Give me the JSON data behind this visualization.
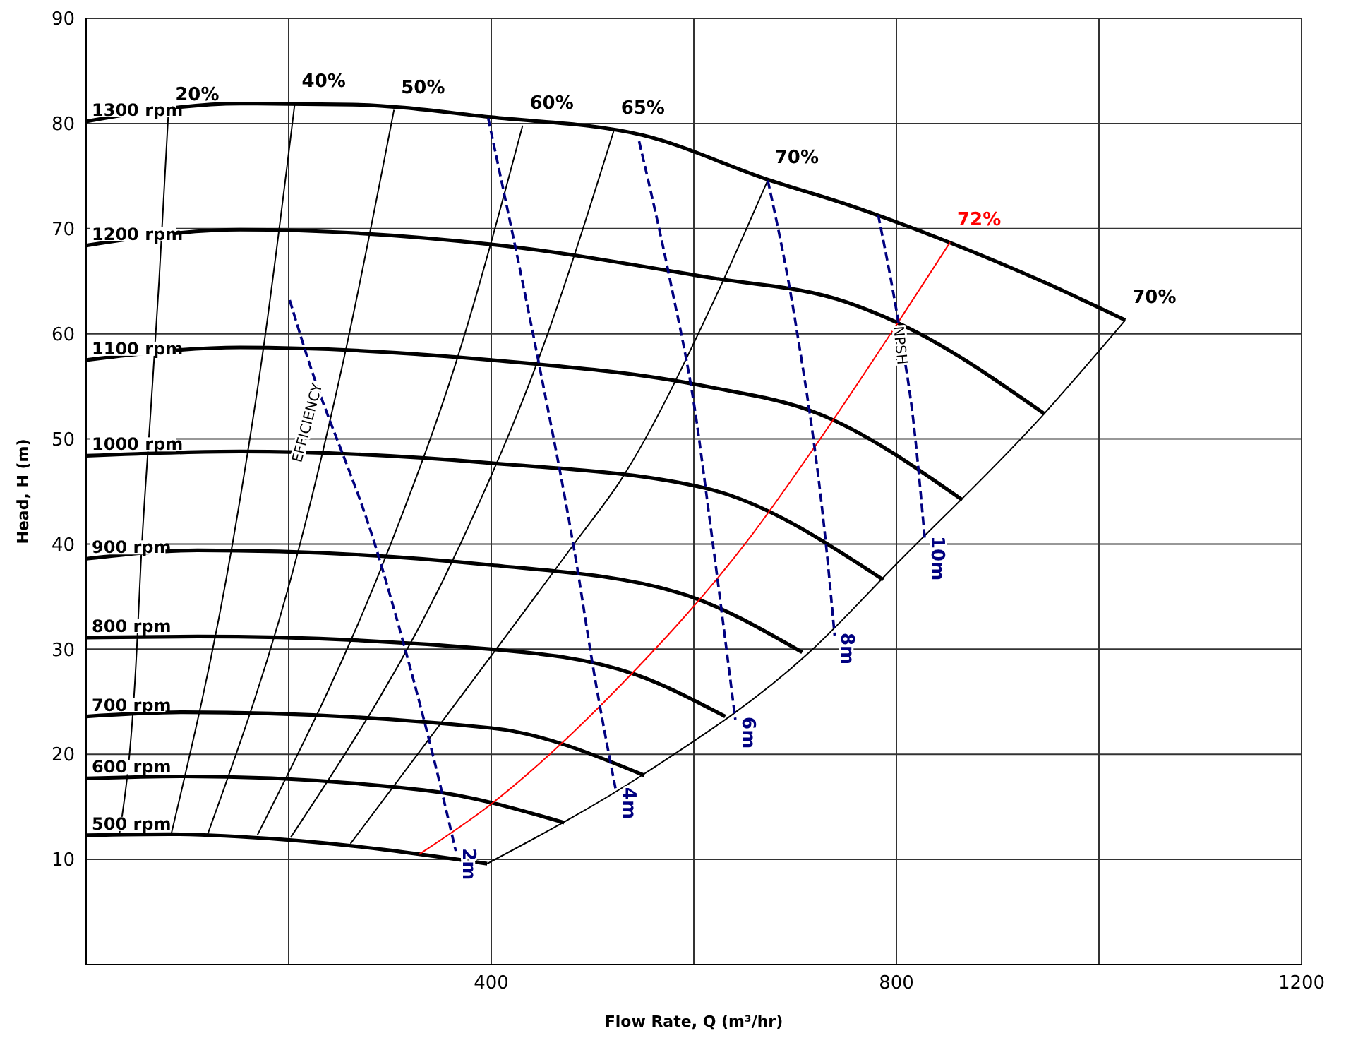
{
  "chart_data": {
    "type": "line",
    "xlabel": "Flow Rate, Q (m³/hr)",
    "ylabel": "Head, H (m)",
    "xlim": [
      0,
      1200
    ],
    "ylim": [
      0,
      90
    ],
    "xticks": [
      {
        "value": 0,
        "label": null
      },
      {
        "value": 200,
        "label": null
      },
      400,
      {
        "value": 600,
        "label": null
      },
      800,
      {
        "value": 1000,
        "label": null
      },
      1200
    ],
    "yticks": [
      {
        "value": 0,
        "label": null
      },
      10,
      20,
      30,
      40,
      50,
      60,
      70,
      80,
      90
    ],
    "grid": true,
    "legend": false,
    "marker": "none",
    "series": [
      {
        "name": "1300 rpm",
        "color": "#000000",
        "line_style": "solid",
        "x": [
          0,
          152,
          263,
          400,
          549,
          675,
          751,
          852,
          946,
          1026
        ],
        "values": [
          80.2,
          81.9,
          81.8,
          80.6,
          78.9,
          74.6,
          72.3,
          68.7,
          64.9,
          61.3
        ]
      },
      {
        "name": "1200 rpm",
        "color": "#000000",
        "line_style": "solid",
        "x": [
          0,
          152,
          400,
          612,
          751,
          800,
          946
        ],
        "values": [
          68.4,
          69.9,
          68.5,
          65.4,
          63.0,
          61.1,
          52.4
        ]
      },
      {
        "name": "1100 rpm",
        "color": "#000000",
        "line_style": "solid",
        "x": [
          0,
          152,
          400,
          612,
          723,
          865
        ],
        "values": [
          57.5,
          58.7,
          57.5,
          55.0,
          52.4,
          44.2
        ]
      },
      {
        "name": "1000 rpm",
        "color": "#000000",
        "line_style": "solid",
        "x": [
          0,
          152,
          400,
          612,
          787
        ],
        "values": [
          48.4,
          48.8,
          47.7,
          45.3,
          36.6
        ]
      },
      {
        "name": "900 rpm",
        "color": "#000000",
        "line_style": "solid",
        "x": [
          0,
          110,
          400,
          584,
          707
        ],
        "values": [
          38.6,
          39.4,
          38.0,
          35.4,
          29.7
        ]
      },
      {
        "name": "800 rpm",
        "color": "#000000",
        "line_style": "solid",
        "x": [
          0,
          110,
          400,
          542,
          631
        ],
        "values": [
          31.1,
          31.2,
          30.0,
          27.6,
          23.6
        ]
      },
      {
        "name": "700 rpm",
        "color": "#000000",
        "line_style": "solid",
        "x": [
          0,
          96,
          400,
          551
        ],
        "values": [
          23.6,
          24.0,
          22.5,
          18.0
        ]
      },
      {
        "name": "600 rpm",
        "color": "#000000",
        "line_style": "solid",
        "x": [
          0,
          96,
          333,
          472
        ],
        "values": [
          17.7,
          17.9,
          16.6,
          13.5
        ]
      },
      {
        "name": "500 rpm",
        "color": "#000000",
        "line_style": "solid",
        "x": [
          0,
          82,
          194,
          396
        ],
        "values": [
          12.3,
          12.4,
          11.9,
          9.6
        ]
      },
      {
        "name": "20%",
        "color": "#000000",
        "line_style": "solid",
        "x": [
          33,
          50,
          54,
          64,
          72,
          81
        ],
        "values": [
          12.5,
          30.0,
          38.1,
          53.0,
          65.0,
          80.6
        ]
      },
      {
        "name": "40%",
        "color": "#000000",
        "line_style": "solid",
        "x": [
          84,
          145,
          175,
          206
        ],
        "values": [
          12.4,
          40.3,
          58.6,
          81.9
        ]
      },
      {
        "name": "50%",
        "color": "#000000",
        "line_style": "solid",
        "x": [
          120,
          212,
          256,
          304
        ],
        "values": [
          12.4,
          40.3,
          58.3,
          81.3
        ]
      },
      {
        "name": "60%",
        "color": "#000000",
        "line_style": "solid",
        "x": [
          169,
          302,
          365,
          431
        ],
        "values": [
          12.3,
          40.3,
          57.2,
          79.8
        ]
      },
      {
        "name": "65%",
        "color": "#000000",
        "line_style": "solid",
        "x": [
          202,
          371,
          449,
          521
        ],
        "values": [
          12.1,
          40.3,
          58.2,
          79.3
        ]
      },
      {
        "name": "70%",
        "color": "#000000",
        "line_style": "solid",
        "x": [
          261,
          484,
          528,
          622,
          673
        ],
        "values": [
          11.5,
          40.3,
          46.1,
          63.6,
          74.6
        ]
      },
      {
        "name": "72%",
        "color": "#ff0000",
        "line_style": "solid",
        "x": [
          329,
          399,
          528,
          656,
          719,
          853
        ],
        "values": [
          10.5,
          15.2,
          26.6,
          40.7,
          49.2,
          68.7
        ]
      },
      {
        "name": "70%",
        "color": "#000000",
        "line_style": "solid",
        "x": [
          396,
          552,
          714,
          800,
          946,
          1026
        ],
        "values": [
          9.6,
          18.2,
          29.7,
          38.1,
          52.4,
          61.3
        ]
      },
      {
        "name": "2m",
        "color": "#000080",
        "line_style": "dashed",
        "x": [
          201,
          217,
          287,
          315,
          343,
          365
        ],
        "values": [
          63.2,
          58.2,
          39.4,
          30.0,
          19.7,
          10.8
        ]
      },
      {
        "name": "4m",
        "color": "#000080",
        "line_style": "dashed",
        "x": [
          397,
          447,
          482,
          503,
          523
        ],
        "values": [
          80.5,
          57.2,
          39.4,
          26.9,
          16.6
        ]
      },
      {
        "name": "6m",
        "color": "#000080",
        "line_style": "dashed",
        "x": [
          546,
          577,
          601,
          616,
          641
        ],
        "values": [
          78.3,
          64.9,
          52.8,
          42.1,
          23.3
        ]
      },
      {
        "name": "8m",
        "color": "#000080",
        "line_style": "dashed",
        "x": [
          673,
          700,
          732,
          739
        ],
        "values": [
          74.6,
          61.3,
          38.5,
          31.3
        ]
      },
      {
        "name": "10m",
        "color": "#000080",
        "line_style": "dashed",
        "x": [
          782,
          803,
          817,
          828
        ],
        "values": [
          71.3,
          60.5,
          51.5,
          40.5
        ]
      }
    ],
    "annotations": [
      "EFFICIENCY",
      "NPSH"
    ]
  }
}
